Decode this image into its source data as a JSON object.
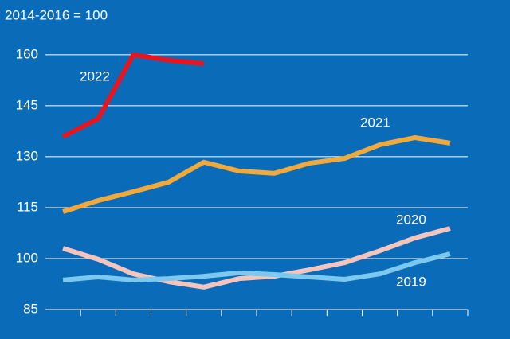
{
  "chart_data": {
    "type": "line",
    "y_axis_label": "2014-2016 = 100",
    "categories": [
      null,
      null,
      null,
      null,
      null,
      null,
      null,
      null,
      null,
      null,
      null,
      null
    ],
    "series": [
      {
        "name": "2022",
        "color": "#e8141e",
        "values": [
          135.9,
          141.2,
          160.0,
          158.4,
          157.4,
          null,
          null,
          null,
          null,
          null,
          null,
          null
        ]
      },
      {
        "name": "2021",
        "color": "#f2a93b",
        "values": [
          113.8,
          117.1,
          119.7,
          122.5,
          128.4,
          125.8,
          125.1,
          128.1,
          129.5,
          133.5,
          135.6,
          134.0
        ]
      },
      {
        "name": "2020",
        "color": "#f4c4bd",
        "values": [
          103.0,
          99.8,
          95.5,
          93.2,
          91.6,
          94.1,
          94.8,
          96.7,
          98.8,
          102.3,
          106.1,
          108.9
        ]
      },
      {
        "name": "2019",
        "color": "#7dc8ee",
        "values": [
          93.7,
          94.6,
          93.7,
          94.1,
          94.8,
          95.8,
          95.3,
          94.6,
          93.9,
          95.5,
          98.8,
          101.4
        ]
      }
    ],
    "ylim": [
      85,
      167
    ],
    "yticks": [
      85,
      100,
      115,
      130,
      145,
      160
    ],
    "grid": true
  }
}
